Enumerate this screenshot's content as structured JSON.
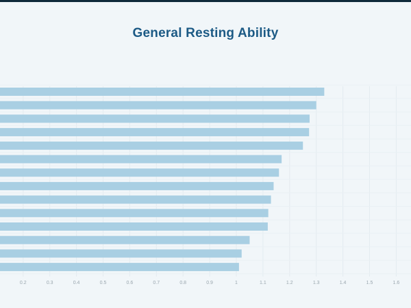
{
  "chart_data": {
    "type": "bar",
    "orientation": "horizontal",
    "title": "General Resting Ability",
    "xlabel": "",
    "ylabel": "",
    "xlim": [
      0.1,
      1.6
    ],
    "xticks": [
      0.2,
      0.3,
      0.4,
      0.5,
      0.6,
      0.7,
      0.8,
      0.9,
      1,
      1.1,
      1.2,
      1.3,
      1.4,
      1.5,
      1.6
    ],
    "grid": true,
    "legend": "none",
    "categories": [
      "",
      "",
      "",
      "",
      "",
      "",
      "",
      "",
      "",
      "",
      "",
      "",
      "",
      ""
    ],
    "values": [
      1.33,
      1.3,
      1.275,
      1.273,
      1.25,
      1.17,
      1.16,
      1.14,
      1.13,
      1.12,
      1.118,
      1.05,
      1.02,
      1.01
    ],
    "colors": {
      "bar": "#a9cfe3",
      "title": "#1c5a85",
      "grid": "#e3ebf0",
      "background": "#f1f6f9"
    }
  }
}
